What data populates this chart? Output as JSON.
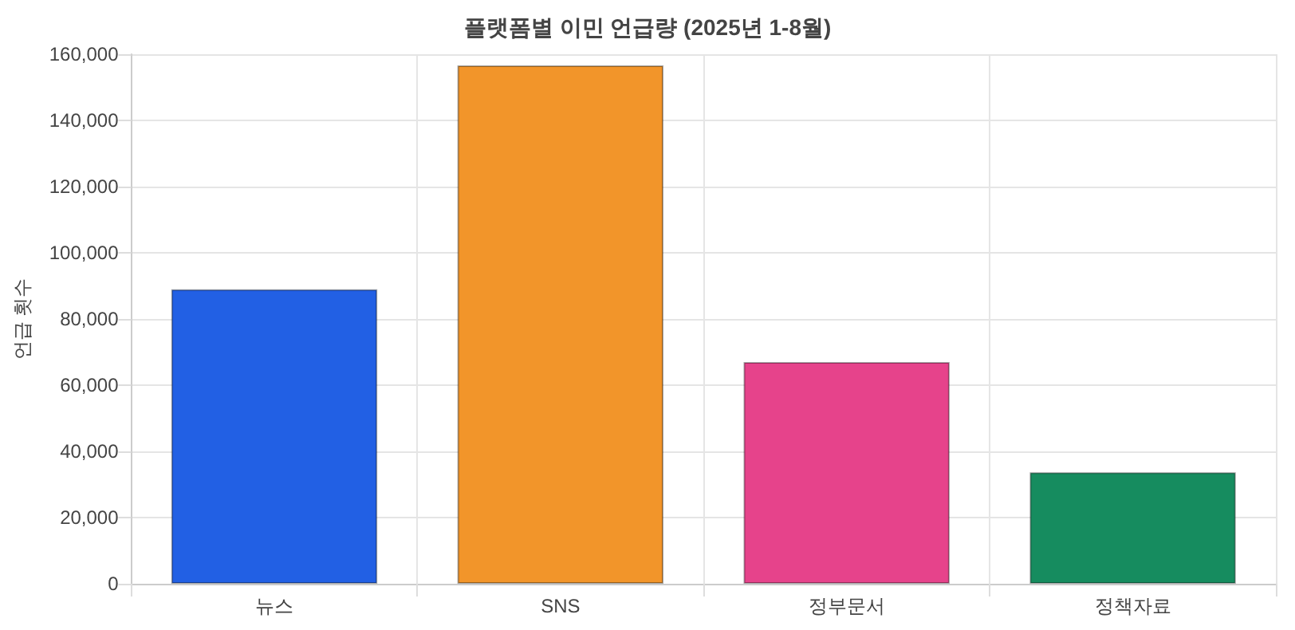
{
  "chart_data": {
    "type": "bar",
    "title": "플랫폼별 이민 언급량 (2025년 1-8월)",
    "ylabel": "언급 횟수",
    "categories": [
      "뉴스",
      "SNS",
      "정부문서",
      "정책자료"
    ],
    "values": [
      89000,
      156600,
      67000,
      33700
    ],
    "colors": [
      "#2260e4",
      "#f2952a",
      "#e6438b",
      "#168c5f"
    ],
    "ylim": [
      0,
      160000
    ],
    "yticks": [
      0,
      {
        "value": 20000,
        "label": "20,000"
      },
      {
        "value": 40000,
        "label": "40,000"
      },
      {
        "value": 60000,
        "label": "60,000"
      },
      {
        "value": 80000,
        "label": "80,000"
      },
      {
        "value": 100000,
        "label": "100,000"
      },
      {
        "value": 120000,
        "label": "120,000"
      },
      {
        "value": 140000,
        "label": "140,000"
      },
      {
        "value": 160000,
        "label": "160,000"
      }
    ],
    "grid": true
  }
}
